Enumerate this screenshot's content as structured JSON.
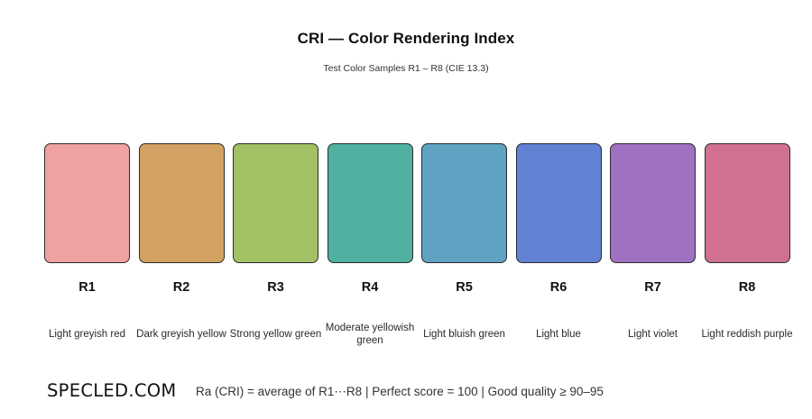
{
  "header": {
    "title": "CRI — Color Rendering Index",
    "subtitle": "Test Color Samples  R1 – R8  (CIE 13.3)"
  },
  "samples": [
    {
      "code": "R1",
      "name": "Light greyish red",
      "color": "#f0a1a1"
    },
    {
      "code": "R2",
      "name": "Dark greyish yellow",
      "color": "#d3a263"
    },
    {
      "code": "R3",
      "name": "Strong yellow green",
      "color": "#a2c163"
    },
    {
      "code": "R4",
      "name": "Moderate yellowish green",
      "color": "#50b1a0"
    },
    {
      "code": "R5",
      "name": "Light bluish green",
      "color": "#60a2c1"
    },
    {
      "code": "R6",
      "name": "Light blue",
      "color": "#6181d3"
    },
    {
      "code": "R7",
      "name": "Light violet",
      "color": "#a071c1"
    },
    {
      "code": "R8",
      "name": "Light reddish purple",
      "color": "#d07190"
    }
  ],
  "footer": {
    "logo": "SPECLED.COM",
    "note": "Ra (CRI) = average of R1⋯R8   |   Perfect score = 100   |   Good quality ≥ 90–95"
  }
}
